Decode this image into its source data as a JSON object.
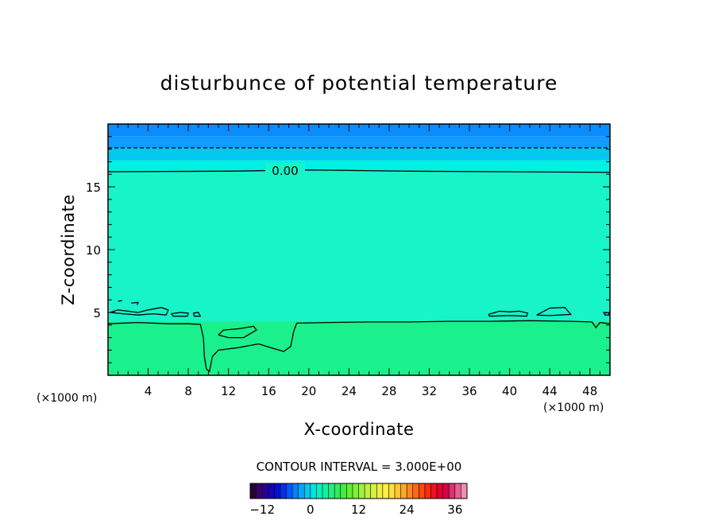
{
  "chart_data": {
    "type": "heatmap",
    "title": "disturbunce of potential temperature",
    "xlabel": "X-coordinate",
    "ylabel": "Z-coordinate",
    "x_unit": "(×1000 m)",
    "y_unit": "(×1000 m)",
    "xlim": [
      0,
      50
    ],
    "ylim": [
      0,
      20
    ],
    "x_ticks": [
      4,
      8,
      12,
      16,
      20,
      24,
      28,
      32,
      36,
      40,
      44,
      48
    ],
    "y_ticks": [
      5,
      10,
      15
    ],
    "contour_interval_text": "CONTOUR INTERVAL = 3.000E+00",
    "contour_label": "0.00",
    "colorbar": {
      "range": [
        -15,
        39
      ],
      "ticks": [
        -12,
        0,
        12,
        24,
        36
      ],
      "tick_labels": [
        "−12",
        "0",
        "12",
        "24",
        "36"
      ]
    },
    "bands": [
      {
        "z_from": 19.0,
        "z_to": 20.0,
        "value": -3.0,
        "color": "#0a8cff"
      },
      {
        "z_from": 18.1,
        "z_to": 19.0,
        "value": -2.5,
        "color": "#139bff"
      },
      {
        "z_from": 17.1,
        "z_to": 18.1,
        "value": -1.5,
        "color": "#00c8f0"
      },
      {
        "z_from": 16.2,
        "z_to": 17.1,
        "value": -0.5,
        "color": "#00f0e4"
      },
      {
        "z_from": 4.3,
        "z_to": 16.2,
        "value": 0.5,
        "color": "#16f4c8"
      },
      {
        "z_from": 0.0,
        "z_to": 4.3,
        "value": 1.5,
        "color": "#1af08c"
      }
    ],
    "contours": [
      {
        "level": 0.0,
        "style": "solid",
        "points": [
          [
            0,
            16.2
          ],
          [
            12,
            16.25
          ],
          [
            20,
            16.35
          ],
          [
            30,
            16.25
          ],
          [
            40,
            16.2
          ],
          [
            50,
            16.15
          ]
        ]
      },
      {
        "level": -3.0,
        "style": "dashed",
        "points": [
          [
            0,
            18.1
          ],
          [
            50,
            18.1
          ]
        ]
      },
      {
        "level": 0.0,
        "style": "solid",
        "points": [
          [
            0,
            4.1
          ],
          [
            3,
            4.2
          ],
          [
            6,
            4.1
          ],
          [
            8,
            4.1
          ],
          [
            9.2,
            4.05
          ],
          [
            9.5,
            3.0
          ],
          [
            9.6,
            1.5
          ],
          [
            9.8,
            0.5
          ],
          [
            10.1,
            0.3
          ],
          [
            10.4,
            1.5
          ],
          [
            11,
            2.0
          ],
          [
            13,
            2.2
          ],
          [
            15,
            2.5
          ],
          [
            16.2,
            2.2
          ],
          [
            17.5,
            1.9
          ],
          [
            18.2,
            2.3
          ],
          [
            18.5,
            3.5
          ],
          [
            18.8,
            4.15
          ],
          [
            22,
            4.2
          ],
          [
            26,
            4.25
          ],
          [
            30,
            4.25
          ],
          [
            34,
            4.3
          ],
          [
            38,
            4.3
          ],
          [
            42,
            4.35
          ],
          [
            46,
            4.3
          ],
          [
            48.2,
            4.25
          ],
          [
            48.6,
            3.8
          ],
          [
            49,
            4.2
          ],
          [
            50,
            4.1
          ]
        ]
      },
      {
        "level": 0.0,
        "style": "solid",
        "points": [
          [
            11,
            3.2
          ],
          [
            12,
            3.0
          ],
          [
            13.5,
            3.0
          ],
          [
            14.8,
            3.6
          ],
          [
            14.5,
            3.9
          ],
          [
            13,
            3.7
          ],
          [
            11.5,
            3.6
          ],
          [
            11,
            3.2
          ]
        ]
      },
      {
        "level": 3.0,
        "style": "solid",
        "points": [
          [
            0.2,
            5.0
          ],
          [
            1,
            5.2
          ],
          [
            2,
            5.1
          ],
          [
            3,
            5.0
          ],
          [
            4,
            5.2
          ],
          [
            5.3,
            5.4
          ],
          [
            6,
            5.2
          ],
          [
            5.8,
            4.8
          ],
          [
            4.5,
            4.9
          ],
          [
            3,
            4.8
          ],
          [
            1.5,
            4.9
          ],
          [
            0.2,
            5.0
          ]
        ]
      },
      {
        "level": 3.0,
        "style": "solid",
        "points": [
          [
            6.3,
            4.9
          ],
          [
            7.2,
            5.0
          ],
          [
            8,
            4.95
          ],
          [
            7.9,
            4.7
          ],
          [
            6.5,
            4.7
          ],
          [
            6.3,
            4.9
          ]
        ]
      },
      {
        "level": 3.0,
        "style": "solid",
        "points": [
          [
            8.5,
            4.95
          ],
          [
            9,
            5.0
          ],
          [
            9.2,
            4.7
          ],
          [
            8.6,
            4.7
          ],
          [
            8.5,
            4.95
          ]
        ]
      },
      {
        "level": 3.0,
        "style": "solid",
        "points": [
          [
            1.0,
            5.9
          ],
          [
            1.4,
            5.95
          ]
        ]
      },
      {
        "level": 3.0,
        "style": "solid",
        "points": [
          [
            2.3,
            5.75
          ],
          [
            3.0,
            5.8
          ],
          [
            2.9,
            5.6
          ]
        ]
      },
      {
        "level": 3.0,
        "style": "solid",
        "points": [
          [
            37.9,
            4.85
          ],
          [
            39,
            5.1
          ],
          [
            40,
            5.05
          ],
          [
            41,
            5.1
          ],
          [
            41.8,
            4.95
          ],
          [
            41.7,
            4.7
          ],
          [
            40,
            4.75
          ],
          [
            38,
            4.7
          ],
          [
            37.9,
            4.85
          ]
        ]
      },
      {
        "level": 3.0,
        "style": "solid",
        "points": [
          [
            42.7,
            4.8
          ],
          [
            44,
            5.35
          ],
          [
            45.5,
            5.4
          ],
          [
            46.1,
            4.85
          ],
          [
            44,
            4.75
          ],
          [
            42.7,
            4.8
          ]
        ]
      },
      {
        "level": 3.0,
        "style": "solid",
        "points": [
          [
            49.4,
            4.95
          ],
          [
            49.9,
            5.0
          ],
          [
            49.9,
            4.8
          ],
          [
            49.5,
            4.8
          ],
          [
            49.4,
            4.95
          ]
        ]
      }
    ],
    "colorbar_palette": [
      "#2a0038",
      "#38006a",
      "#2a0090",
      "#1800b4",
      "#0010d0",
      "#0030e8",
      "#0058ff",
      "#0080ff",
      "#00a8ff",
      "#00c8f0",
      "#00e4e0",
      "#00f4c0",
      "#10f4a0",
      "#20f080",
      "#30ec60",
      "#48ec40",
      "#60f030",
      "#80f030",
      "#a0f040",
      "#c0f040",
      "#d8f040",
      "#eef040",
      "#fff040",
      "#ffe040",
      "#ffc830",
      "#ffa828",
      "#ff8820",
      "#ff6818",
      "#ff4810",
      "#ff2810",
      "#f01020",
      "#e00030",
      "#d80048",
      "#e03070",
      "#e86090",
      "#f090b0"
    ]
  }
}
